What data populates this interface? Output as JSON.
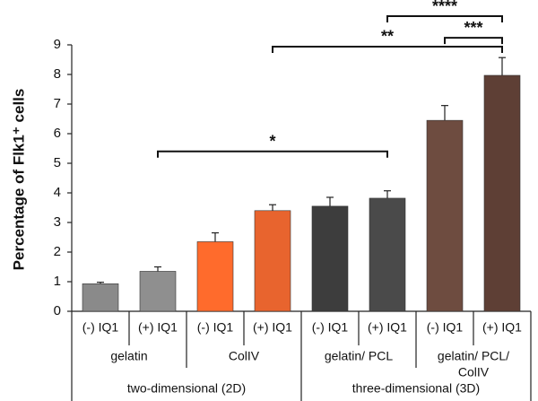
{
  "chart_data": {
    "type": "bar",
    "y_label": "Percentage of Flk1⁺ cells",
    "categories": [
      "(-) IQ1",
      "(+) IQ1",
      "(-) IQ1",
      "(+) IQ1",
      "(-) IQ1",
      "(+) IQ1",
      "(-) IQ1",
      "(+) IQ1"
    ],
    "groups": [
      [
        "gelatin"
      ],
      [
        "ColIV"
      ],
      [
        "gelatin/ PCL"
      ],
      [
        "gelatin/ PCL/",
        "ColIV"
      ]
    ],
    "supergroups": [
      "two-dimensional (2D)",
      "three-dimensional (3D)"
    ],
    "values": [
      0.93,
      1.35,
      2.35,
      3.4,
      3.55,
      3.82,
      6.45,
      7.97
    ],
    "errors": [
      0.05,
      0.15,
      0.3,
      0.2,
      0.3,
      0.25,
      0.5,
      0.6
    ],
    "colors": [
      "#8a8a8a",
      "#8f8f8f",
      "#ff6b2c",
      "#e8642e",
      "#3d3d3d",
      "#4a4a4a",
      "#6e4c40",
      "#5e3f35"
    ],
    "ylim": [
      0,
      9
    ],
    "yticks": [
      0,
      1,
      2,
      3,
      4,
      5,
      6,
      7,
      8,
      9
    ],
    "significance": [
      {
        "from": 1,
        "to": 5,
        "y": 5.4,
        "label": "*"
      },
      {
        "from": 3,
        "to": 7,
        "y": 8.94,
        "label": "**"
      },
      {
        "from": 6,
        "to": 7,
        "y": 9.24,
        "label": "***"
      },
      {
        "from": 5,
        "to": 7,
        "y": 9.97,
        "label": "****"
      }
    ]
  }
}
